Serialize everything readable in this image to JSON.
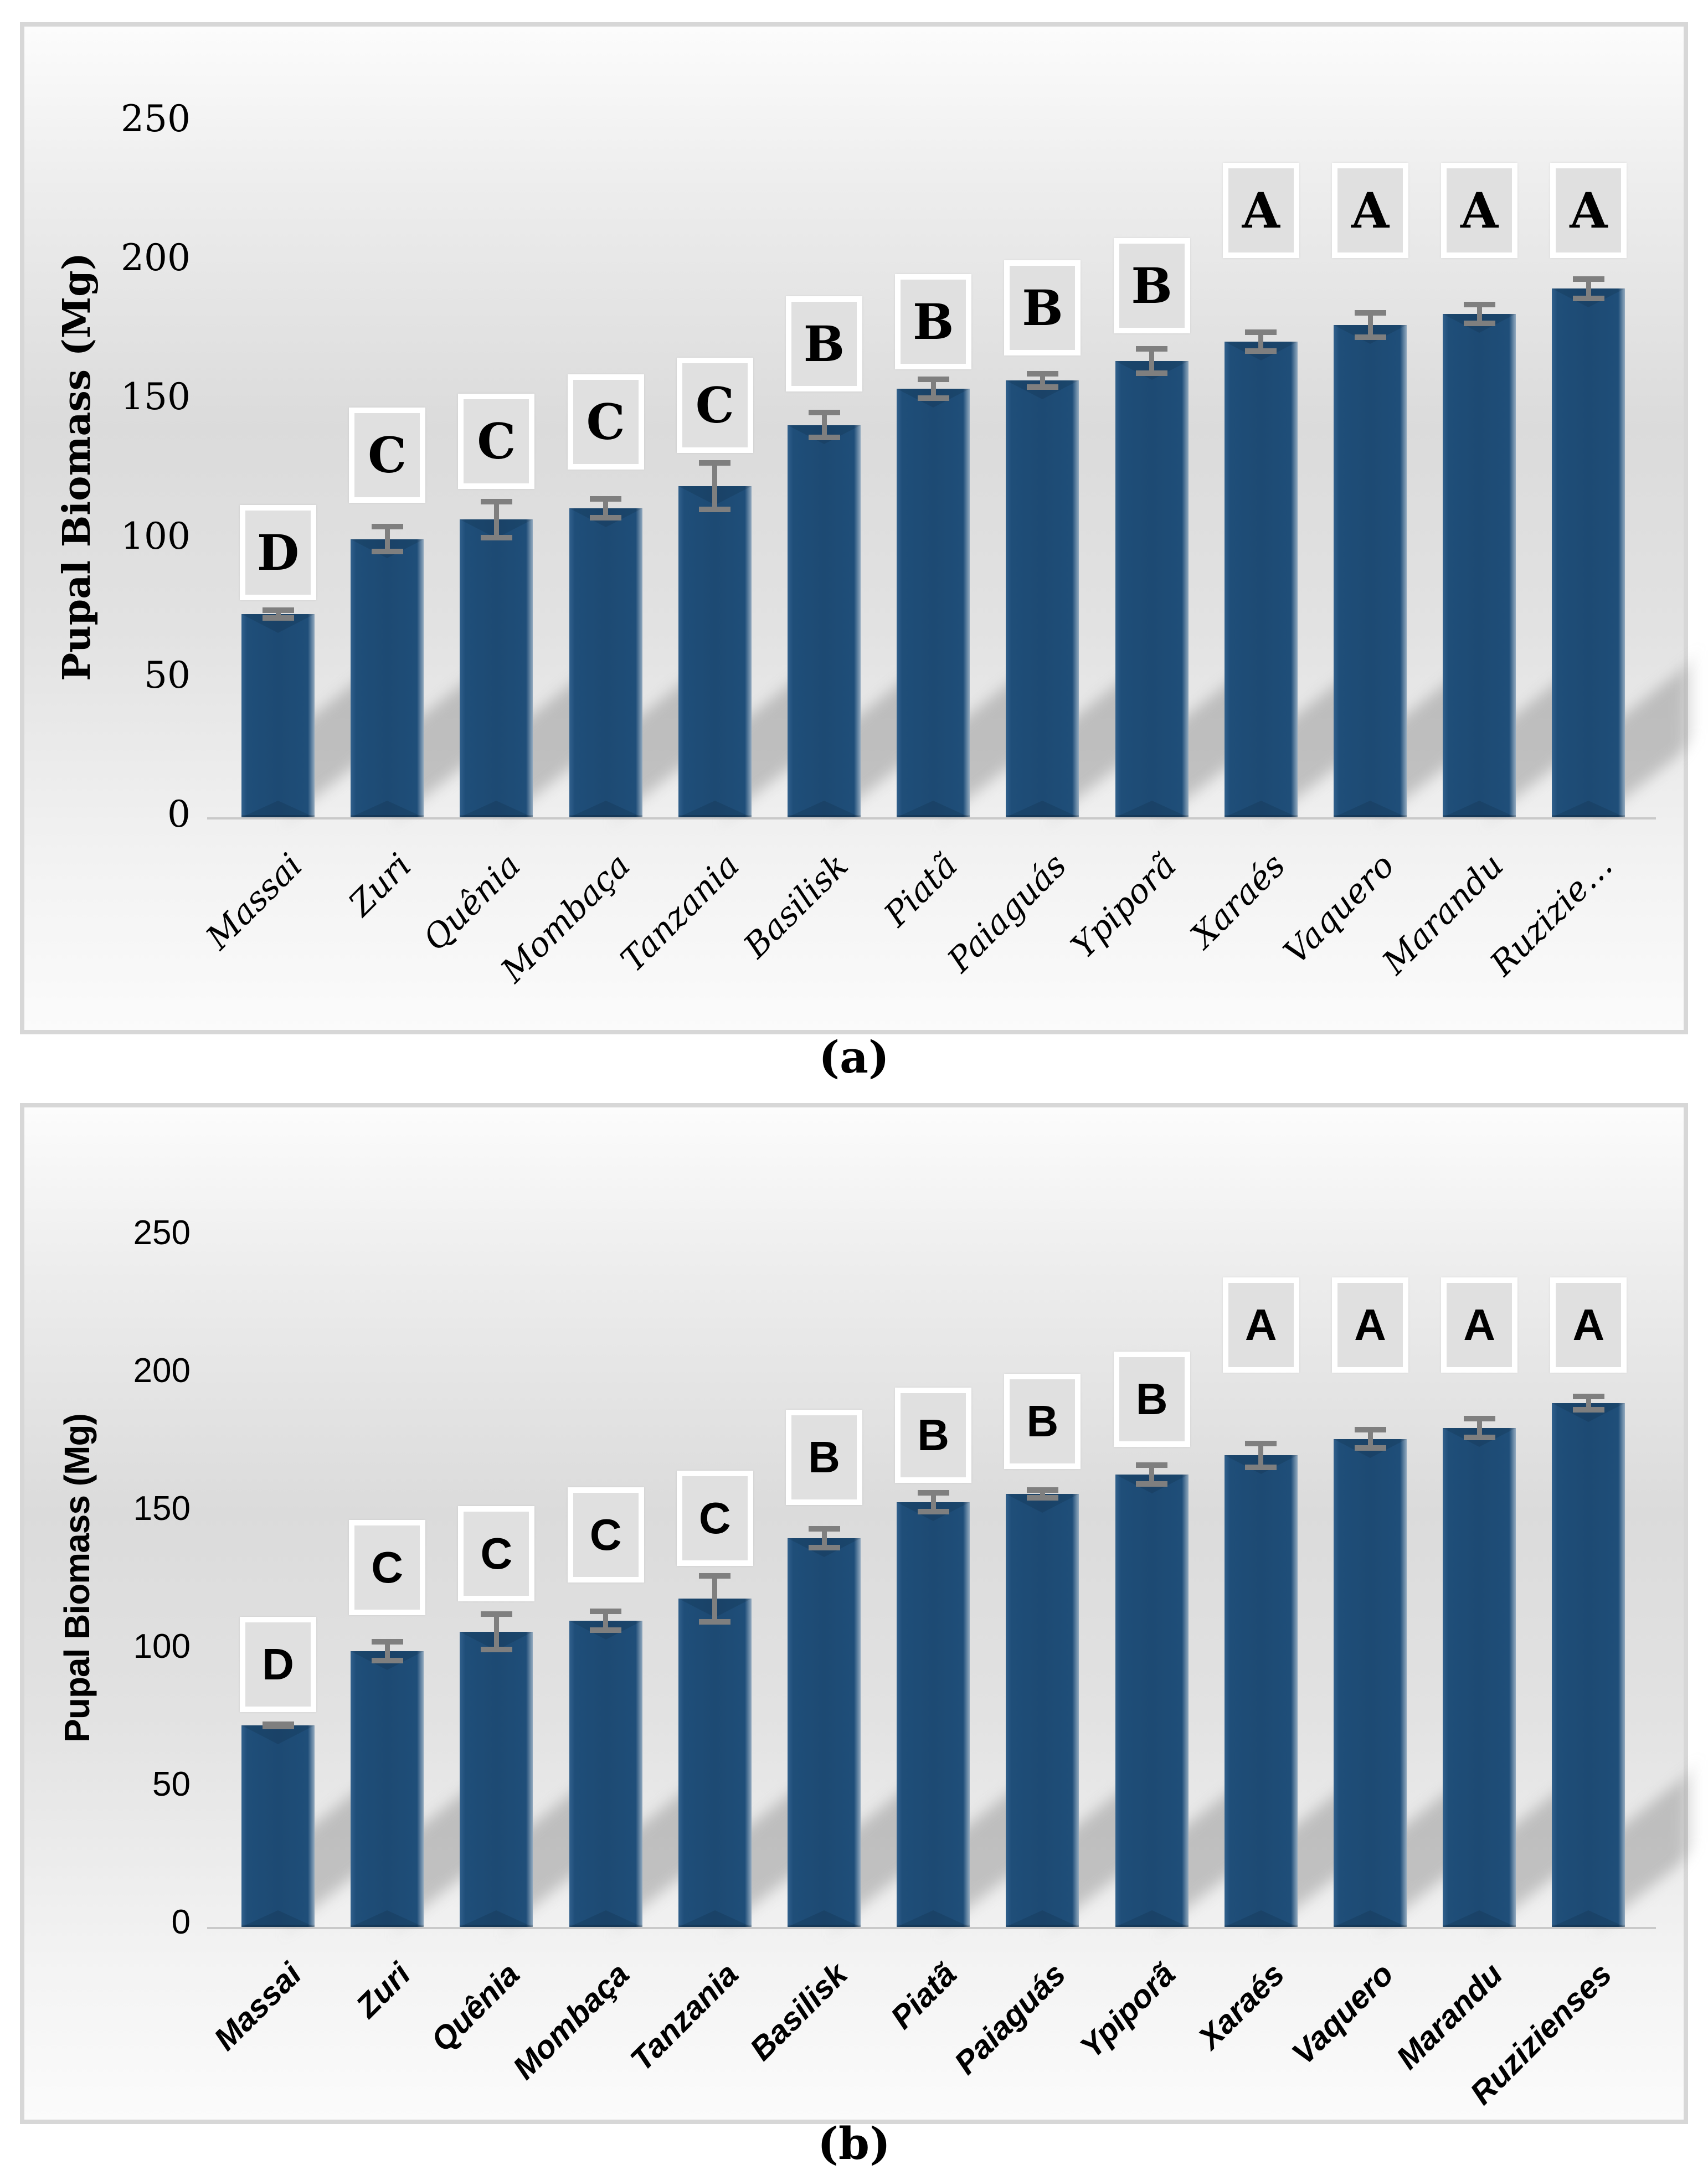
{
  "figure": {
    "description_visible_text_only": true,
    "panel_count": 2
  },
  "chart_data": [
    {
      "type": "bar",
      "panel": "a",
      "caption": "(a)",
      "title": "",
      "ylabel": "Pupal Biomass (Mg)",
      "xlabel": "",
      "ylim": [
        0,
        250
      ],
      "yticks": [
        250,
        200,
        150,
        100,
        50,
        0
      ],
      "grid": false,
      "legend_position": "none",
      "bar_color": "#1F4E79",
      "error_bar_color": "#7F7F7F",
      "letter_box_fill": "#E0E0E0",
      "letter_box_border": "#FFFFFF",
      "categories": [
        "Massai",
        "Zuri",
        "Quênia",
        "Mombaça",
        "Tanzania",
        "Basilisk",
        "Piatã",
        "Paiaguás",
        "Ypiporã",
        "Xaraés",
        "Vaquero",
        "Marandu",
        "Ruzizie…"
      ],
      "values": [
        73,
        100,
        107,
        111,
        119,
        141,
        154,
        157,
        164,
        171,
        177,
        181,
        190
      ],
      "errors": [
        2,
        5,
        7,
        4,
        9,
        5,
        4,
        3,
        5,
        4,
        5,
        4,
        4
      ],
      "significance_letters": [
        "D",
        "C",
        "C",
        "C",
        "C",
        "B",
        "B",
        "B",
        "B",
        "A",
        "A",
        "A",
        "A"
      ],
      "letter_box_bottom_value": [
        78,
        113,
        118,
        125,
        131,
        153,
        161,
        166,
        174,
        201,
        201,
        201,
        201
      ]
    },
    {
      "type": "bar",
      "panel": "b",
      "caption": "(b)",
      "title": "",
      "ylabel": "Pupal Biomass (Mg)",
      "xlabel": "",
      "ylim": [
        0,
        250
      ],
      "yticks": [
        250,
        200,
        150,
        100,
        50,
        0
      ],
      "grid": false,
      "legend_position": "none",
      "bar_color": "#1F4E79",
      "error_bar_color": "#7F7F7F",
      "letter_box_fill": "#E0E0E0",
      "letter_box_border": "#FFFFFF",
      "categories": [
        "Massai",
        "Zuri",
        "Quênia",
        "Mombaça",
        "Tanzania",
        "Basilisk",
        "Piatã",
        "Paiaguás",
        "Ypiporã",
        "Xaraés",
        "Vaquero",
        "Marandu",
        "Ruzizienses"
      ],
      "values": [
        73,
        100,
        107,
        111,
        119,
        141,
        154,
        157,
        164,
        171,
        177,
        181,
        190
      ],
      "errors": [
        1,
        4,
        7,
        4,
        9,
        4,
        4,
        2,
        4,
        5,
        4,
        4,
        3
      ],
      "significance_letters": [
        "D",
        "C",
        "C",
        "C",
        "C",
        "B",
        "B",
        "B",
        "B",
        "A",
        "A",
        "A",
        "A"
      ],
      "letter_box_bottom_value": [
        78,
        113,
        118,
        125,
        131,
        153,
        161,
        166,
        174,
        201,
        201,
        201,
        201
      ]
    }
  ]
}
